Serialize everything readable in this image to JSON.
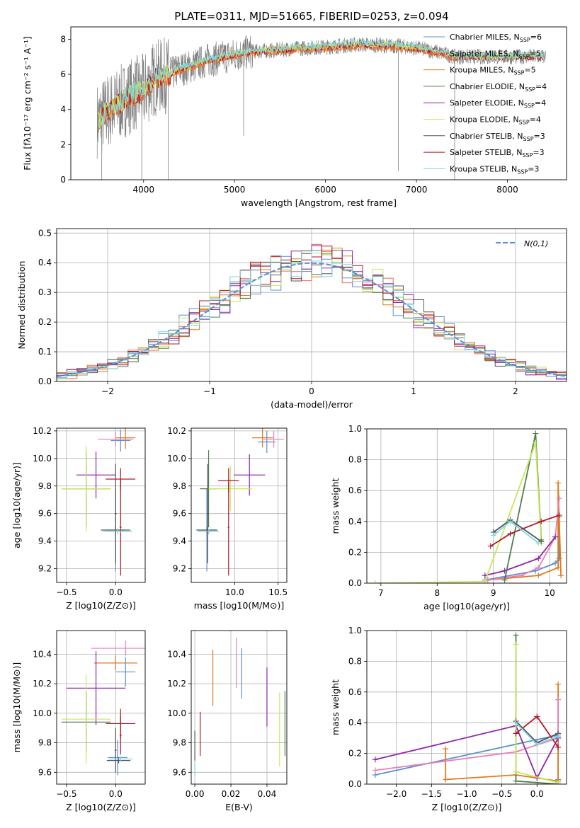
{
  "title": "PLATE=0311, MJD=51665, FIBERID=0253, z=0.094",
  "colors": {
    "chabrier_miles": "#5b8ed6",
    "salpeter_miles": "#e86b4f",
    "kroupa_miles": "#e07b1c",
    "chabrier_elodie": "#4f7f4f",
    "salpeter_elodie": "#8e24aa",
    "kroupa_elodie": "#c8e65a",
    "chabrier_stelib": "#555555",
    "salpeter_stelib": "#b2182b",
    "kroupa_stelib": "#7fd6e0",
    "pink": "#e87fb4",
    "data": "#808080",
    "gaussian": "#5b8ed6",
    "grid": "#b0b0b0"
  },
  "legend": [
    {
      "label": "Chabrier MILES, N",
      "sub": "SSP",
      "tail": "=6",
      "color": "#5b8ed6"
    },
    {
      "label": "Salpeter MILES, N",
      "sub": "SSP",
      "tail": "=5",
      "color": "#e86b4f"
    },
    {
      "label": "Kroupa MILES, N",
      "sub": "SSP",
      "tail": "=5",
      "color": "#e07b1c"
    },
    {
      "label": "Chabrier ELODIE, N",
      "sub": "SSP",
      "tail": "=4",
      "color": "#4f7f4f"
    },
    {
      "label": "Salpeter ELODIE, N",
      "sub": "SSP",
      "tail": "=4",
      "color": "#8e24aa"
    },
    {
      "label": "Kroupa ELODIE, N",
      "sub": "SSP",
      "tail": "=4",
      "color": "#c8e65a"
    },
    {
      "label": "Chabrier STELIB, N",
      "sub": "SSP",
      "tail": "=3",
      "color": "#555555"
    },
    {
      "label": "Salpeter STELIB, N",
      "sub": "SSP",
      "tail": "=3",
      "color": "#b2182b"
    },
    {
      "label": "Kroupa STELIB, N",
      "sub": "SSP",
      "tail": "=3",
      "color": "#7fd6e0"
    }
  ],
  "chart_data": [
    {
      "id": "spectrum",
      "type": "line",
      "xlabel": "wavelength [Angstrom, rest frame]",
      "ylabel": "Flux [fλ10⁻¹⁷ erg cm⁻² s⁻¹ A⁻¹]",
      "xlim": [
        3200,
        8650
      ],
      "ylim": [
        0,
        8.7
      ],
      "xticks": [
        4000,
        5000,
        6000,
        7000,
        8000
      ],
      "yticks": [
        0,
        2,
        4,
        6,
        8
      ],
      "continuum_x": [
        3500,
        3600,
        3700,
        3800,
        3900,
        4000,
        4100,
        4200,
        4300,
        4400,
        4500,
        4600,
        4700,
        4800,
        4900,
        5000,
        5200,
        5400,
        5600,
        5800,
        6000,
        6200,
        6400,
        6600,
        6800,
        7000,
        7200,
        7420
      ],
      "continuum_y": [
        3.4,
        3.9,
        4.2,
        4.6,
        4.9,
        5.0,
        5.7,
        5.9,
        6.0,
        6.3,
        6.4,
        6.6,
        6.8,
        6.9,
        7.0,
        7.1,
        7.3,
        7.35,
        7.45,
        7.5,
        7.55,
        7.65,
        7.7,
        7.65,
        7.6,
        7.5,
        7.3,
        7.0
      ],
      "model_x": [
        3500,
        8400
      ],
      "grid": false
    },
    {
      "id": "residuals",
      "type": "histogram",
      "xlabel": "(data-model)/error",
      "ylabel": "Normed distribution",
      "xlim": [
        -2.5,
        2.5
      ],
      "ylim": [
        0,
        0.515
      ],
      "xticks": [
        -2,
        -1,
        0,
        1,
        2
      ],
      "yticks": [
        0.0,
        0.1,
        0.2,
        0.3,
        0.4,
        0.5
      ],
      "bin_width": 0.1,
      "legend_label": "N(0,1)",
      "grid": true
    },
    {
      "id": "age_vs_Z",
      "type": "errorbar",
      "xlabel": "Z [log10(Z/Z⊙)]",
      "ylabel": "age  [log10(age/yr)]",
      "xlim": [
        -0.6,
        0.3
      ],
      "ylim": [
        9.1,
        10.22
      ],
      "xticks": [
        -0.5,
        0.0
      ],
      "yticks": [
        9.2,
        9.4,
        9.6,
        9.8,
        10.0,
        10.2
      ],
      "points": [
        {
          "x": 0.0,
          "y": 9.48,
          "xerr": 0.1,
          "yerr": 0.3,
          "c": "#5b8ed6"
        },
        {
          "x": 0.05,
          "y": 10.13,
          "xerr": 0.1,
          "yerr": 0.08,
          "c": "#5b8ed6"
        },
        {
          "x": 0.1,
          "y": 10.15,
          "xerr": 0.1,
          "yerr": 0.08,
          "c": "#e07b1c"
        },
        {
          "x": 0.0,
          "y": 10.14,
          "xerr": 0.18,
          "yerr": 0.05,
          "c": "#e87fb4"
        },
        {
          "x": -0.2,
          "y": 9.88,
          "xerr": 0.2,
          "yerr": 0.17,
          "c": "#8e24aa"
        },
        {
          "x": -0.3,
          "y": 9.78,
          "xerr": 0.25,
          "yerr": 0.27,
          "c": "#4f7f4f"
        },
        {
          "x": -0.3,
          "y": 9.78,
          "xerr": 0.25,
          "yerr": 0.31,
          "c": "#c8e65a"
        },
        {
          "x": 0.05,
          "y": 9.85,
          "xerr": 0.15,
          "yerr": 0.08,
          "c": "#b2182b"
        },
        {
          "x": 0.05,
          "y": 9.5,
          "xerr": 0.01,
          "yerr": 0.35,
          "c": "#b2182b"
        },
        {
          "x": 0.0,
          "y": 9.48,
          "xerr": 0.15,
          "yerr": 0.02,
          "c": "#555555"
        },
        {
          "x": 0.0,
          "y": 9.6,
          "xerr": 0.01,
          "yerr": 0.36,
          "c": "#555555"
        },
        {
          "x": 0.02,
          "y": 9.47,
          "xerr": 0.15,
          "yerr": 0.02,
          "c": "#7fd6e0"
        }
      ]
    },
    {
      "id": "age_vs_mass",
      "type": "errorbar",
      "xlabel": "mass [log10(M/M⊙)]",
      "ylabel": "",
      "xlim": [
        9.5,
        10.6
      ],
      "ylim": [
        9.1,
        10.22
      ],
      "xticks": [
        10.0,
        10.5
      ],
      "yticks": [
        9.2,
        9.4,
        9.6,
        9.8,
        10.0,
        10.2
      ],
      "points": [
        {
          "x": 9.68,
          "y": 9.48,
          "xerr": 0.12,
          "yerr": 0.3,
          "c": "#5b8ed6"
        },
        {
          "x": 10.37,
          "y": 10.12,
          "xerr": 0.1,
          "yerr": 0.08,
          "c": "#5b8ed6"
        },
        {
          "x": 10.32,
          "y": 10.15,
          "xerr": 0.12,
          "yerr": 0.07,
          "c": "#e07b1c"
        },
        {
          "x": 10.45,
          "y": 10.14,
          "xerr": 0.12,
          "yerr": 0.06,
          "c": "#e87fb4"
        },
        {
          "x": 10.17,
          "y": 9.88,
          "xerr": 0.18,
          "yerr": 0.15,
          "c": "#8e24aa"
        },
        {
          "x": 9.7,
          "y": 9.78,
          "xerr": 0.1,
          "yerr": 0.28,
          "c": "#4f7f4f"
        },
        {
          "x": 9.95,
          "y": 9.78,
          "xerr": 0.25,
          "yerr": 0.16,
          "c": "#c8e65a"
        },
        {
          "x": 9.93,
          "y": 9.84,
          "xerr": 0.12,
          "yerr": 0.09,
          "c": "#b2182b"
        },
        {
          "x": 9.93,
          "y": 9.5,
          "xerr": 0.01,
          "yerr": 0.35,
          "c": "#b2182b"
        },
        {
          "x": 9.68,
          "y": 9.48,
          "xerr": 0.12,
          "yerr": 0.02,
          "c": "#555555"
        },
        {
          "x": 9.69,
          "y": 9.6,
          "xerr": 0.01,
          "yerr": 0.36,
          "c": "#555555"
        },
        {
          "x": 9.7,
          "y": 9.47,
          "xerr": 0.12,
          "yerr": 0.02,
          "c": "#7fd6e0"
        }
      ]
    },
    {
      "id": "weight_vs_age",
      "type": "line",
      "xlabel": "age  [log10(age/yr)]",
      "ylabel": "mass weight",
      "xlim": [
        6.75,
        10.3
      ],
      "ylim": [
        0,
        1.0
      ],
      "xticks": [
        7,
        8,
        9,
        10
      ],
      "yticks": [
        0.0,
        0.2,
        0.4,
        0.6,
        0.8,
        1.0
      ],
      "series": [
        {
          "c": "#5b8ed6",
          "x": [
            8.85,
            9.75,
            10.1,
            10.17,
            10.17
          ],
          "y": [
            0.02,
            0.08,
            0.13,
            0.16,
            0.43
          ]
        },
        {
          "c": "#e07b1c",
          "x": [
            8.9,
            9.8,
            10.15,
            10.15,
            10.2
          ],
          "y": [
            0.02,
            0.05,
            0.1,
            0.65,
            0.05
          ]
        },
        {
          "c": "#e87fb4",
          "x": [
            8.9,
            9.5,
            9.8,
            10.1,
            10.17
          ],
          "y": [
            0.02,
            0.05,
            0.1,
            0.3,
            0.55
          ]
        },
        {
          "c": "#8e24aa",
          "x": [
            8.85,
            9.2,
            9.8,
            10.1
          ],
          "y": [
            0.05,
            0.08,
            0.16,
            0.3
          ]
        },
        {
          "c": "#4f7f4f",
          "x": [
            9.2,
            9.75,
            9.85
          ],
          "y": [
            0.02,
            0.97,
            0.28
          ]
        },
        {
          "c": "#c8e65a",
          "x": [
            6.9,
            8.85,
            9.75,
            9.85
          ],
          "y": [
            0.0,
            0.01,
            0.91,
            0.26
          ]
        },
        {
          "c": "#b2182b",
          "x": [
            8.95,
            9.3,
            9.85,
            10.17
          ],
          "y": [
            0.24,
            0.32,
            0.4,
            0.44
          ]
        },
        {
          "c": "#555555",
          "x": [
            9.0,
            9.3,
            9.85
          ],
          "y": [
            0.33,
            0.41,
            0.27
          ]
        },
        {
          "c": "#7fd6e0",
          "x": [
            9.0,
            9.3,
            9.8
          ],
          "y": [
            0.31,
            0.4,
            0.26
          ]
        }
      ]
    },
    {
      "id": "mass_vs_Z",
      "type": "errorbar",
      "xlabel": "Z [log10(Z/Z⊙)]",
      "ylabel": "mass [log10(M/M⊙)]",
      "xlim": [
        -0.6,
        0.3
      ],
      "ylim": [
        9.52,
        10.56
      ],
      "xticks": [
        -0.5,
        0.0
      ],
      "yticks": [
        9.6,
        9.8,
        10.0,
        10.2,
        10.4
      ],
      "points": [
        {
          "x": 0.1,
          "y": 10.28,
          "xerr": 0.1,
          "yerr": 0.1,
          "c": "#5b8ed6"
        },
        {
          "x": 0.02,
          "y": 9.7,
          "xerr": 0.1,
          "yerr": 0.12,
          "c": "#5b8ed6"
        },
        {
          "x": 0.0,
          "y": 10.34,
          "xerr": 0.22,
          "yerr": 0.05,
          "c": "#e07b1c"
        },
        {
          "x": 0.1,
          "y": 10.44,
          "xerr": 0.35,
          "yerr": 0.05,
          "c": "#e87fb4"
        },
        {
          "x": -0.2,
          "y": 10.17,
          "xerr": 0.3,
          "yerr": 0.25,
          "c": "#8e24aa"
        },
        {
          "x": -0.3,
          "y": 9.94,
          "xerr": 0.25,
          "yerr": 0.2,
          "c": "#4f7f4f"
        },
        {
          "x": -0.3,
          "y": 9.96,
          "xerr": 0.25,
          "yerr": 0.3,
          "c": "#c8e65a"
        },
        {
          "x": 0.05,
          "y": 9.93,
          "xerr": 0.15,
          "yerr": 0.1,
          "c": "#b2182b"
        },
        {
          "x": 0.05,
          "y": 9.85,
          "xerr": 0.01,
          "yerr": 0.13,
          "c": "#b2182b"
        },
        {
          "x": 0.03,
          "y": 9.68,
          "xerr": 0.12,
          "yerr": 0.02,
          "c": "#555555"
        },
        {
          "x": 0.0,
          "y": 9.75,
          "xerr": 0.01,
          "yerr": 0.15,
          "c": "#555555"
        },
        {
          "x": 0.05,
          "y": 9.69,
          "xerr": 0.12,
          "yerr": 0.02,
          "c": "#7fd6e0"
        }
      ]
    },
    {
      "id": "mass_vs_ebv",
      "type": "errorbar",
      "xlabel": "E(B-V)",
      "ylabel": "",
      "xlim": [
        -0.002,
        0.051
      ],
      "ylim": [
        9.52,
        10.56
      ],
      "xticks": [
        0.0,
        0.02,
        0.04
      ],
      "yticks": [
        9.6,
        9.8,
        10.0,
        10.2,
        10.4
      ],
      "points": [
        {
          "x": 0.0,
          "y": 9.73,
          "xerr": 0.0,
          "yerr": 0.16,
          "c": "#7fd6e0"
        },
        {
          "x": 0.0,
          "y": 9.78,
          "xerr": 0.0,
          "yerr": 0.1,
          "c": "#555555"
        },
        {
          "x": 0.003,
          "y": 9.86,
          "xerr": 0.0,
          "yerr": 0.15,
          "c": "#b2182b"
        },
        {
          "x": 0.01,
          "y": 10.24,
          "xerr": 0.0,
          "yerr": 0.19,
          "c": "#e07b1c"
        },
        {
          "x": 0.023,
          "y": 10.34,
          "xerr": 0.0,
          "yerr": 0.17,
          "c": "#e87fb4"
        },
        {
          "x": 0.026,
          "y": 10.27,
          "xerr": 0.0,
          "yerr": 0.17,
          "c": "#5b8ed6"
        },
        {
          "x": 0.04,
          "y": 10.11,
          "xerr": 0.0,
          "yerr": 0.2,
          "c": "#8e24aa"
        },
        {
          "x": 0.047,
          "y": 9.89,
          "xerr": 0.0,
          "yerr": 0.25,
          "c": "#c8e65a"
        },
        {
          "x": 0.05,
          "y": 9.93,
          "xerr": 0.0,
          "yerr": 0.22,
          "c": "#4f7f4f"
        }
      ]
    },
    {
      "id": "weight_vs_Z",
      "type": "line",
      "xlabel": "Z [log10(Z/Z⊙)]",
      "ylabel": "mass weight",
      "xlim": [
        -2.42,
        0.42
      ],
      "ylim": [
        0,
        1.0
      ],
      "xticks": [
        -2.0,
        -1.5,
        -1.0,
        -0.5,
        0.0
      ],
      "yticks": [
        0.0,
        0.2,
        0.4,
        0.6,
        0.8,
        1.0
      ],
      "series": [
        {
          "c": "#5b8ed6",
          "x": [
            -2.3,
            -0.3,
            0.3,
            0.3
          ],
          "y": [
            0.06,
            0.26,
            0.32,
            0.03
          ]
        },
        {
          "c": "#e07b1c",
          "x": [
            -1.3,
            -1.3,
            -0.3,
            0.3,
            0.3
          ],
          "y": [
            0.23,
            0.03,
            0.06,
            0.02,
            0.65
          ]
        },
        {
          "c": "#e87fb4",
          "x": [
            -2.3,
            -0.3,
            0.3,
            0.3
          ],
          "y": [
            0.09,
            0.21,
            0.3,
            0.55
          ]
        },
        {
          "c": "#8e24aa",
          "x": [
            -2.3,
            -0.3,
            0.0,
            0.3
          ],
          "y": [
            0.16,
            0.38,
            0.04,
            0.3
          ]
        },
        {
          "c": "#4f7f4f",
          "x": [
            -0.3,
            -0.3,
            0.3
          ],
          "y": [
            0.97,
            0.02,
            0.0
          ]
        },
        {
          "c": "#c8e65a",
          "x": [
            -0.3,
            -0.3,
            0.3
          ],
          "y": [
            0.91,
            0.08,
            0.01
          ]
        },
        {
          "c": "#b2182b",
          "x": [
            -0.3,
            0.0,
            0.3
          ],
          "y": [
            0.33,
            0.44,
            0.24
          ]
        },
        {
          "c": "#555555",
          "x": [
            -0.3,
            0.0,
            0.3
          ],
          "y": [
            0.41,
            0.27,
            0.33
          ]
        },
        {
          "c": "#7fd6e0",
          "x": [
            -0.3,
            0.0,
            0.3
          ],
          "y": [
            0.4,
            0.26,
            0.31
          ]
        }
      ]
    }
  ]
}
